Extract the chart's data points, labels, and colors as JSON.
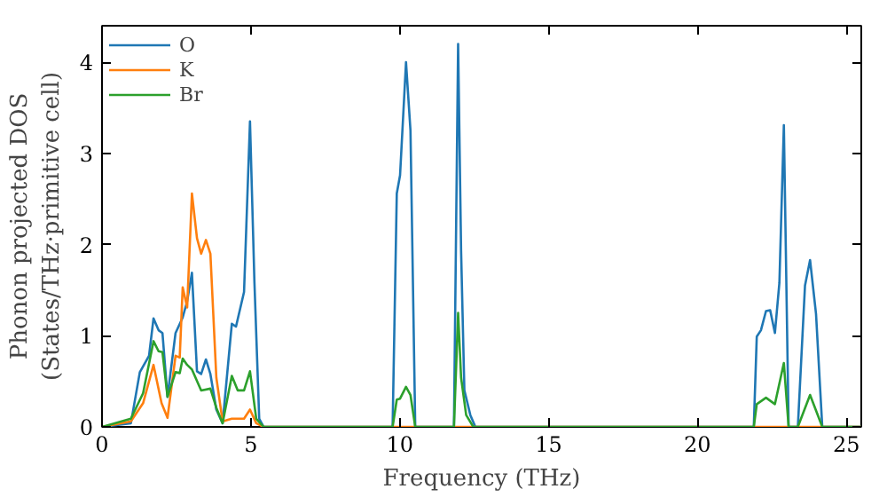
{
  "chart_data": {
    "type": "line",
    "xlabel": "Frequency (THz)",
    "ylabel": "Phonon projected DOS\n(States/THz·primitive cell)",
    "xlim": [
      0,
      25.5
    ],
    "ylim": [
      0,
      4.4
    ],
    "xticks": [
      0,
      5,
      10,
      15,
      20,
      25
    ],
    "yticks": [
      0,
      1,
      2,
      3,
      4
    ],
    "legend": "top left",
    "grid": false,
    "series": [
      {
        "name": "O",
        "color": "#1f77b4",
        "x": [
          0,
          0.97,
          1.27,
          1.58,
          1.73,
          1.9,
          2.03,
          2.2,
          2.47,
          2.71,
          2.86,
          3.02,
          3.19,
          3.33,
          3.49,
          3.64,
          3.84,
          4.05,
          4.36,
          4.5,
          4.77,
          4.97,
          5.12,
          5.28,
          5.43,
          9.76,
          9.9,
          10.01,
          10.21,
          10.36,
          10.52,
          11.82,
          11.96,
          12.06,
          12.17,
          12.37,
          12.54,
          21.89,
          21.99,
          22.13,
          22.3,
          22.44,
          22.6,
          22.75,
          22.9,
          23.06,
          23.37,
          23.61,
          23.78,
          23.98,
          24.19,
          25.5
        ],
        "values": [
          0,
          0.04,
          0.6,
          0.78,
          1.19,
          1.06,
          1.03,
          0.33,
          1.03,
          1.2,
          1.38,
          1.69,
          0.61,
          0.58,
          0.74,
          0.58,
          0.19,
          0.04,
          1.13,
          1.1,
          1.48,
          3.35,
          1.58,
          0.09,
          0,
          0,
          2.56,
          2.76,
          4.0,
          3.25,
          0,
          0,
          4.2,
          1.93,
          0.4,
          0.13,
          0,
          0,
          0.99,
          1.06,
          1.27,
          1.28,
          1.03,
          1.58,
          3.31,
          0,
          0,
          1.55,
          1.83,
          1.24,
          0,
          0
        ]
      },
      {
        "name": "K",
        "color": "#ff7f0e",
        "x": [
          0,
          0.97,
          1.38,
          1.73,
          2.0,
          2.2,
          2.47,
          2.61,
          2.71,
          2.86,
          3.02,
          3.19,
          3.33,
          3.49,
          3.64,
          3.84,
          4.05,
          4.36,
          4.77,
          4.97,
          5.18,
          5.43,
          25.5
        ],
        "values": [
          0,
          0.06,
          0.26,
          0.68,
          0.26,
          0.1,
          0.78,
          0.76,
          1.53,
          1.31,
          2.56,
          2.07,
          1.9,
          2.05,
          1.9,
          0.54,
          0.06,
          0.09,
          0.09,
          0.19,
          0.04,
          0,
          0
        ]
      },
      {
        "name": "Br",
        "color": "#2ca02c",
        "x": [
          0,
          0.97,
          1.38,
          1.73,
          1.9,
          2.03,
          2.2,
          2.47,
          2.61,
          2.71,
          2.86,
          3.02,
          3.33,
          3.64,
          3.84,
          4.05,
          4.36,
          4.56,
          4.77,
          4.97,
          5.18,
          5.43,
          9.76,
          9.9,
          10.01,
          10.21,
          10.36,
          10.52,
          11.82,
          11.96,
          12.06,
          12.23,
          12.47,
          21.89,
          21.99,
          22.3,
          22.6,
          22.9,
          23.06,
          23.37,
          23.78,
          24.19,
          25.5
        ],
        "values": [
          0,
          0.09,
          0.37,
          0.94,
          0.83,
          0.82,
          0.33,
          0.6,
          0.59,
          0.75,
          0.68,
          0.63,
          0.4,
          0.42,
          0.21,
          0.04,
          0.56,
          0.4,
          0.4,
          0.61,
          0.09,
          0,
          0,
          0.3,
          0.31,
          0.44,
          0.35,
          0,
          0,
          1.25,
          0.54,
          0.13,
          0,
          0,
          0.25,
          0.32,
          0.25,
          0.7,
          0,
          0,
          0.35,
          0,
          0
        ]
      }
    ]
  }
}
